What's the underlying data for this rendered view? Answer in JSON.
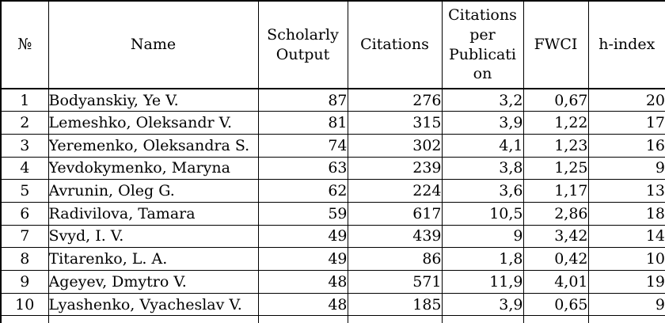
{
  "table": {
    "columns": [
      {
        "key": "num",
        "label": "№"
      },
      {
        "key": "name",
        "label": "Name"
      },
      {
        "key": "scholarly_output",
        "label": "Scholarly Output"
      },
      {
        "key": "citations",
        "label": "Citations"
      },
      {
        "key": "citations_per_publication",
        "label": "Citations per Publication"
      },
      {
        "key": "fwci",
        "label": "FWCI"
      },
      {
        "key": "h_index",
        "label": "h-index"
      }
    ],
    "rows": [
      {
        "num": "1",
        "name": "Bodyanskiy, Ye V.",
        "scholarly_output": "87",
        "citations": "276",
        "citations_per_publication": "3,2",
        "fwci": "0,67",
        "h_index": "20"
      },
      {
        "num": "2",
        "name": "Lemeshko, Oleksandr V.",
        "scholarly_output": "81",
        "citations": "315",
        "citations_per_publication": "3,9",
        "fwci": "1,22",
        "h_index": "17"
      },
      {
        "num": "3",
        "name": "Yeremenko, Oleksandra S.",
        "scholarly_output": "74",
        "citations": "302",
        "citations_per_publication": "4,1",
        "fwci": "1,23",
        "h_index": "16"
      },
      {
        "num": "4",
        "name": "Yevdokymenko, Maryna",
        "scholarly_output": "63",
        "citations": "239",
        "citations_per_publication": "3,8",
        "fwci": "1,25",
        "h_index": "9"
      },
      {
        "num": "5",
        "name": "Avrunin, Oleg G.",
        "scholarly_output": "62",
        "citations": "224",
        "citations_per_publication": "3,6",
        "fwci": "1,17",
        "h_index": "13"
      },
      {
        "num": "6",
        "name": "Radivilova, Tamara",
        "scholarly_output": "59",
        "citations": "617",
        "citations_per_publication": "10,5",
        "fwci": "2,86",
        "h_index": "18"
      },
      {
        "num": "7",
        "name": "Svyd, I. V.",
        "scholarly_output": "49",
        "citations": "439",
        "citations_per_publication": "9",
        "fwci": "3,42",
        "h_index": "14"
      },
      {
        "num": "8",
        "name": "Titarenko, L. A.",
        "scholarly_output": "49",
        "citations": "86",
        "citations_per_publication": "1,8",
        "fwci": "0,42",
        "h_index": "10"
      },
      {
        "num": "9",
        "name": "Ageyev, Dmytro V.",
        "scholarly_output": "48",
        "citations": "571",
        "citations_per_publication": "11,9",
        "fwci": "4,01",
        "h_index": "19"
      },
      {
        "num": "10",
        "name": "Lyashenko, Vyacheslav V.",
        "scholarly_output": "48",
        "citations": "185",
        "citations_per_publication": "3,9",
        "fwci": "0,65",
        "h_index": "9"
      }
    ],
    "colors": {
      "border": "#000000",
      "text": "#000000",
      "background": "#ffffff"
    }
  }
}
